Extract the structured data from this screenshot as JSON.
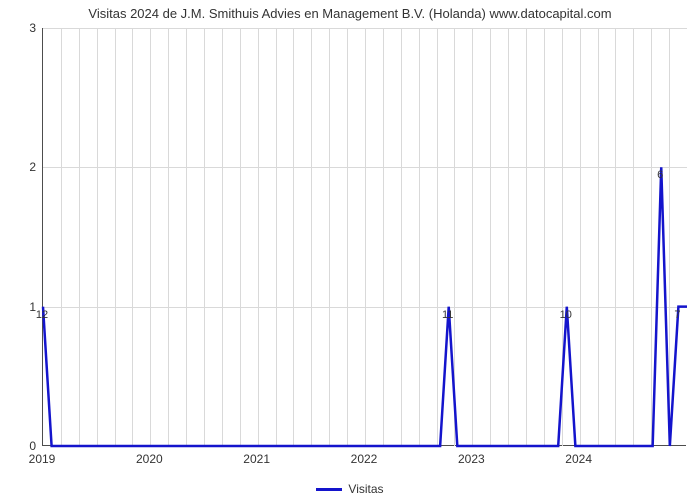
{
  "title": "Visitas 2024 de J.M. Smithuis Advies en Management B.V. (Holanda) www.datocapital.com",
  "chart": {
    "type": "line",
    "background_color": "#ffffff",
    "grid_color": "#d9d9d9",
    "axis_color": "#4d4d4d",
    "text_color": "#333333",
    "title_fontsize": 13,
    "tick_fontsize": 12,
    "label_fontsize": 11,
    "line_color": "#1414cc",
    "line_width": 2.5,
    "x_axis": {
      "min": 2019,
      "max": 2025,
      "ticks": [
        2019,
        2020,
        2021,
        2022,
        2023,
        2024
      ]
    },
    "y_axis": {
      "min": 0,
      "max": 3,
      "ticks": [
        0,
        1,
        2,
        3
      ]
    },
    "minor_x_every": 0.1666667,
    "series": [
      {
        "name": "Visitas",
        "color": "#1414cc",
        "points": [
          {
            "x": 2019.0,
            "y": 1
          },
          {
            "x": 2019.08,
            "y": 0
          },
          {
            "x": 2022.7,
            "y": 0
          },
          {
            "x": 2022.78,
            "y": 1
          },
          {
            "x": 2022.86,
            "y": 0
          },
          {
            "x": 2023.8,
            "y": 0
          },
          {
            "x": 2023.88,
            "y": 1
          },
          {
            "x": 2023.96,
            "y": 0
          },
          {
            "x": 2024.68,
            "y": 0
          },
          {
            "x": 2024.76,
            "y": 2
          },
          {
            "x": 2024.84,
            "y": 0
          },
          {
            "x": 2024.92,
            "y": 1
          },
          {
            "x": 2025.0,
            "y": 1
          }
        ]
      }
    ],
    "data_labels": [
      {
        "x": 2019.0,
        "y": 1,
        "text": "12"
      },
      {
        "x": 2022.78,
        "y": 1,
        "text": "11"
      },
      {
        "x": 2023.88,
        "y": 1,
        "text": "10"
      },
      {
        "x": 2024.76,
        "y": 2,
        "text": "6"
      },
      {
        "x": 2024.92,
        "y": 1,
        "text": "7"
      }
    ],
    "legend": {
      "items": [
        {
          "label": "Visitas",
          "color": "#1414cc"
        }
      ]
    }
  }
}
